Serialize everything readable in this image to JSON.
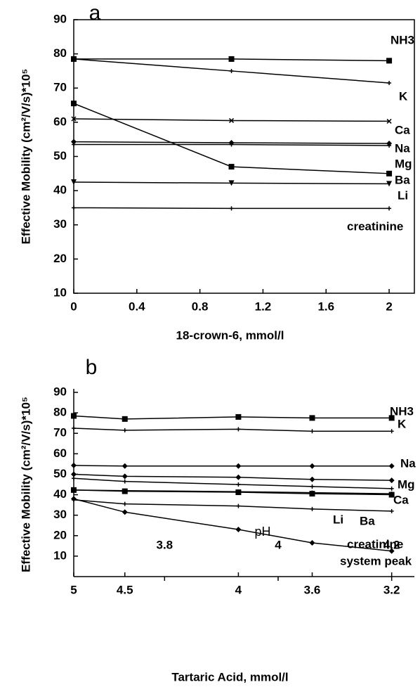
{
  "chart_data": [
    {
      "type": "line",
      "title": "a",
      "x_label": "18-crown-6, mmol/l",
      "y_label": "Effective Mobility  (cm²/V/s)*10⁵",
      "x": [
        0,
        1,
        2
      ],
      "xlim": [
        0,
        2.16
      ],
      "xticks": [
        0,
        0.4,
        0.8,
        1.2,
        1.6,
        2
      ],
      "ylim": [
        10,
        90
      ],
      "yticks": [
        10,
        20,
        30,
        40,
        50,
        60,
        70,
        80,
        90
      ],
      "frame": true,
      "color": "#000000",
      "series": [
        {
          "name": "NH3",
          "marker": "square",
          "values": [
            78.5,
            78.5,
            78
          ]
        },
        {
          "name": "K",
          "marker": "cross",
          "values": [
            78.5,
            75,
            71.5
          ]
        },
        {
          "name": "Ca",
          "marker": "x",
          "values": [
            61,
            60.5,
            60.3
          ]
        },
        {
          "name": "Na",
          "marker": "diamond",
          "values": [
            54.3,
            54,
            53.8
          ]
        },
        {
          "name": "Mg",
          "marker": "cross",
          "values": [
            53.5,
            53.5,
            53.2
          ]
        },
        {
          "name": "Ba",
          "marker": "square",
          "values": [
            65.5,
            47,
            45
          ]
        },
        {
          "name": "Li",
          "marker": "triangle",
          "values": [
            42.5,
            42.2,
            42
          ]
        },
        {
          "name": "creatinine",
          "marker": "cross",
          "values": [
            35,
            34.8,
            34.8
          ]
        }
      ]
    },
    {
      "type": "line",
      "title": "b",
      "x_label": "Tartaric Acid, mmol/l",
      "y_label": "Effective Mobility (cm²/V/s)*10⁵",
      "x2_label": "pH",
      "x": [
        3.64,
        3.73,
        3.93,
        4.06,
        4.2
      ],
      "xlim": [
        3.64,
        4.24
      ],
      "xticks": [
        {
          "value": 3.64,
          "label": "5"
        },
        {
          "value": 3.73,
          "label": "4.5"
        },
        {
          "value": 3.93,
          "label": "4"
        },
        {
          "value": 4.06,
          "label": "3.6"
        },
        {
          "value": 4.2,
          "label": "3.2"
        }
      ],
      "x2ticks": [
        3.8,
        4,
        4.2
      ],
      "ylim": [
        0,
        90
      ],
      "yticks": [
        10,
        20,
        30,
        40,
        50,
        60,
        70,
        80,
        90
      ],
      "frame": false,
      "color": "#000000",
      "series": [
        {
          "name": "NH3",
          "marker": "square",
          "values": [
            78.5,
            77,
            78,
            77.5,
            77.5
          ]
        },
        {
          "name": "K",
          "marker": "cross",
          "values": [
            72.5,
            71.5,
            72,
            71,
            71
          ]
        },
        {
          "name": "Na",
          "marker": "diamond",
          "values": [
            54.3,
            54,
            54,
            54,
            54
          ]
        },
        {
          "name": "Mg",
          "marker": "diamond",
          "values": [
            50,
            49,
            48.5,
            47.5,
            47
          ]
        },
        {
          "name": "Ca",
          "marker": "cross",
          "values": [
            48,
            46.5,
            45,
            44,
            43
          ]
        },
        {
          "name": "Li",
          "marker": "cross",
          "values": [
            42.3,
            42,
            41.5,
            41,
            40.5
          ]
        },
        {
          "name": "Ba",
          "marker": "square",
          "values": [
            42.3,
            41.7,
            41.2,
            40.5,
            40
          ]
        },
        {
          "name": "creatinine",
          "marker": "cross",
          "values": [
            37.5,
            35.5,
            34.5,
            33,
            32
          ]
        },
        {
          "name": "system peak",
          "marker": "diamond",
          "values": [
            38,
            31.5,
            23,
            16.5,
            12.5
          ]
        }
      ]
    }
  ]
}
